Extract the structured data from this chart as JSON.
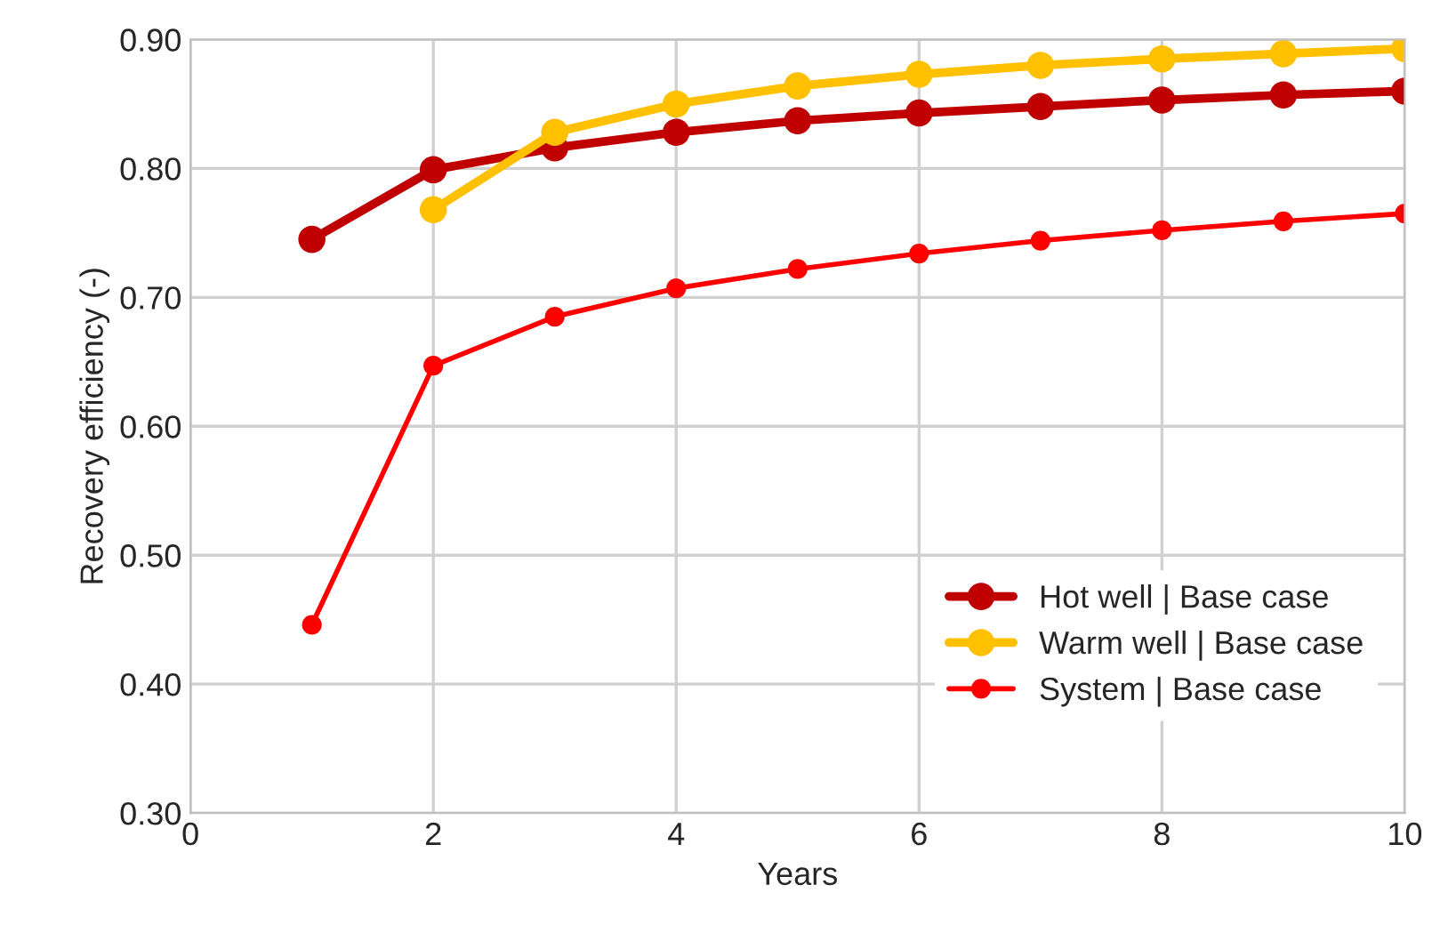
{
  "chart_data": {
    "type": "line",
    "xlabel": "Years",
    "ylabel": "Recovery efficiency (-)",
    "xlim": [
      0,
      10
    ],
    "xticks": [
      0,
      2,
      4,
      6,
      8,
      10
    ],
    "ylim": [
      0.3,
      0.9
    ],
    "yticks": [
      {
        "value": 0.3,
        "label": "0.30"
      },
      {
        "value": 0.4,
        "label": "0.40"
      },
      {
        "value": 0.5,
        "label": "0.50"
      },
      {
        "value": 0.6,
        "label": "0.60"
      },
      {
        "value": 0.7,
        "label": "0.70"
      },
      {
        "value": 0.8,
        "label": "0.80"
      },
      {
        "value": 0.9,
        "label": "0.90"
      }
    ],
    "grid": true,
    "legend": "bottom right",
    "marker": "circle",
    "line_style": "solid",
    "series": [
      {
        "name": "Hot well | Base case",
        "color": "#c00000",
        "x": [
          1,
          2,
          3,
          4,
          5,
          6,
          7,
          8,
          9,
          10
        ],
        "values": [
          0.745,
          0.799,
          0.816,
          0.828,
          0.837,
          0.843,
          0.848,
          0.853,
          0.857,
          0.86
        ]
      },
      {
        "name": "Warm well | Base case",
        "color": "#ffc000",
        "x": [
          2,
          3,
          4,
          5,
          6,
          7,
          8,
          9,
          10
        ],
        "values": [
          0.768,
          0.828,
          0.85,
          0.864,
          0.873,
          0.88,
          0.885,
          0.889,
          0.893
        ]
      },
      {
        "name": "System | Base case",
        "color": "#ff0000",
        "x": [
          1,
          2,
          3,
          4,
          5,
          6,
          7,
          8,
          9,
          10
        ],
        "values": [
          0.446,
          0.647,
          0.685,
          0.707,
          0.722,
          0.734,
          0.744,
          0.752,
          0.759,
          0.765
        ]
      }
    ]
  }
}
